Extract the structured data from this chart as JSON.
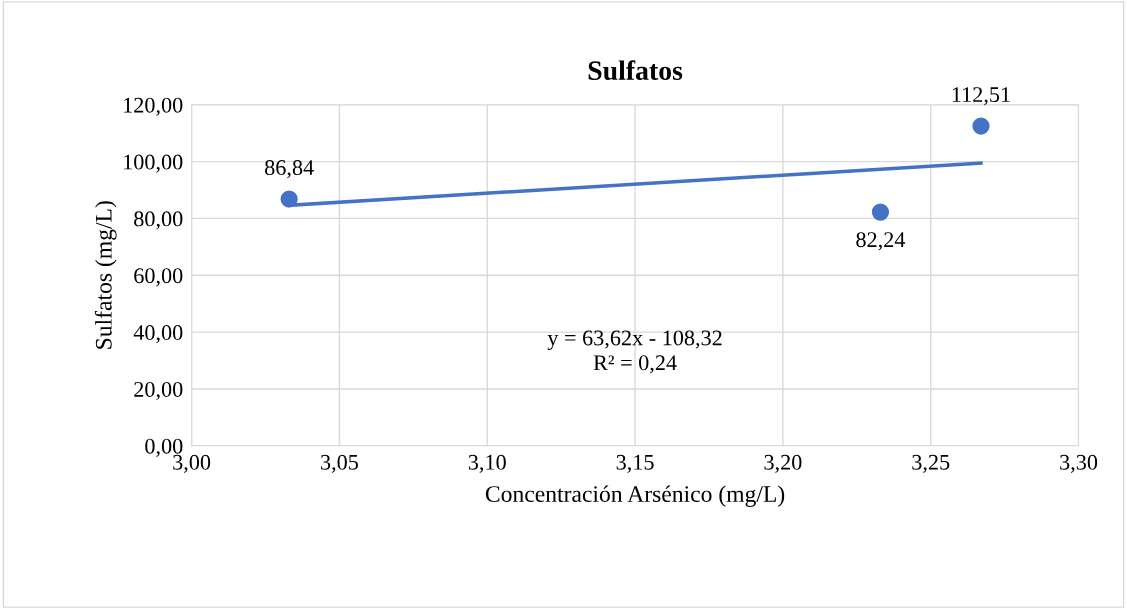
{
  "chart_data": {
    "type": "scatter",
    "title": "Sulfatos",
    "xlabel": "Concentración Arsénico (mg/L)",
    "ylabel": "Sulfatos (mg/L)",
    "series": [
      {
        "color": "#4472c4",
        "x": [
          3.033,
          3.233,
          3.267
        ],
        "values": [
          86.84,
          82.24,
          112.51
        ],
        "value_labels": [
          "86,84",
          "82,24",
          "112,51"
        ],
        "marker": "circle"
      },
      {
        "type": "line",
        "color": "#4472c4",
        "x": [
          3.033,
          3.267
        ],
        "values": [
          84.6,
          99.5
        ],
        "marker": "none",
        "line_style": "solid"
      }
    ],
    "annotations": [
      "y = 63,62x - 108,32\nR² = 0,24"
    ],
    "xlim": [
      3.0,
      3.3
    ],
    "xticks": [
      {
        "value": 3.0,
        "label": "3,00"
      },
      {
        "value": 3.05,
        "label": "3,05"
      },
      {
        "value": 3.1,
        "label": "3,10"
      },
      {
        "value": 3.15,
        "label": "3,15"
      },
      {
        "value": 3.2,
        "label": "3,20"
      },
      {
        "value": 3.25,
        "label": "3,25"
      },
      {
        "value": 3.3,
        "label": "3,30"
      }
    ],
    "ylim": [
      0,
      120
    ],
    "yticks": [
      {
        "value": 0,
        "label": "0,00"
      },
      {
        "value": 20,
        "label": "20,00"
      },
      {
        "value": 40,
        "label": "40,00"
      },
      {
        "value": 60,
        "label": "60,00"
      },
      {
        "value": 80,
        "label": "80,00"
      },
      {
        "value": 100,
        "label": "100,00"
      },
      {
        "value": 120,
        "label": "120,00"
      }
    ],
    "grid": true
  }
}
